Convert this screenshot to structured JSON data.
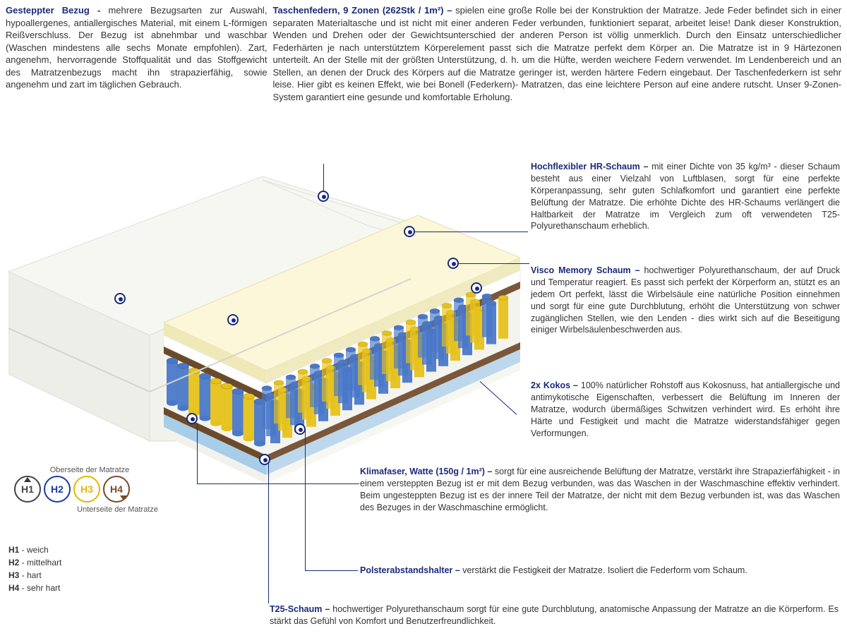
{
  "top": {
    "cover": {
      "title": "Gesteppter Bezug - ",
      "body": "mehrere Bezugsarten zur Auswahl, hypoallergenes, antiallergisches Material, mit einem L-förmigen Reißverschluss. Der Bezug ist abnehmbar und waschbar (Waschen mindestens alle sechs Monate empfohlen). Zart, angenehm, hervorragende Stoffqualität und das Stoffgewicht des Matratzenbezugs macht ihn strapazierfähig, sowie angenehm und zart im täglichen Gebrauch."
    },
    "springs": {
      "title": "Taschenfedern, 9 Zonen (262Stk / 1m²) – ",
      "body": "spielen eine große Rolle bei der Konstruktion der Matratze. Jede Feder befindet sich in einer separaten Materialtasche und ist nicht mit einer anderen Feder verbunden, funktioniert separat, arbeitet leise! Dank dieser Konstruktion, Wenden und Drehen oder der Gewichtsunterschied der anderen Person ist völlig unmerklich. Durch den Einsatz unterschiedlicher Federhärten je nach unterstütztem Körperelement passt sich die Matratze perfekt dem Körper an. Die Matratze ist in 9 Härtezonen unterteilt. An der Stelle mit der größten Unterstützung, d. h. um die Hüfte, werden weichere Federn verwendet. Im Lendenbereich und an Stellen, an denen der Druck des Körpers auf die Matratze geringer ist, werden härtere Federn eingebaut. Der Taschenfederkern ist sehr leise. Hier gibt es keinen Effekt, wie bei Bonell (Federkern)- Matratzen, das eine leichtere Person auf eine andere rutscht. Unser 9-Zonen-System garantiert eine gesunde und komfortable Erholung."
    }
  },
  "sections": {
    "hr": {
      "title": "Hochflexibler HR-Schaum – ",
      "body": "mit einer Dichte von 35 kg/m³ - dieser Schaum besteht aus einer Vielzahl von Luftblasen, sorgt für eine perfekte Körperanpassung, sehr guten Schlafkomfort und garantiert eine perfekte Belüftung der Matratze. Die erhöhte Dichte des HR-Schaums verlängert die Haltbarkeit der Matratze im Vergleich zum oft verwendeten T25-Polyurethanschaum erheblich."
    },
    "visco": {
      "title": "Visco Memory Schaum – ",
      "body": "hochwertiger Polyurethanschaum, der auf Druck und Temperatur reagiert. Es passt sich perfekt der Körperform an, stützt es an jedem Ort perfekt, lässt die Wirbelsäule eine natürliche Position einnehmen und sorgt für eine gute Durchblutung, erhöht die Unterstützung von schwer zugänglichen Stellen, wie den Lenden - dies wirkt sich auf die Beseitigung einiger Wirbelsäulenbeschwerden aus."
    },
    "kokos": {
      "title": "2x Kokos – ",
      "body": "100% natürlicher Rohstoff aus Kokosnuss, hat antiallergische und antimykotische Eigenschaften, verbessert die Belüftung im Inneren der Matratze, wodurch übermäßiges Schwitzen verhindert wird. Es erhöht ihre Härte und Festigkeit und macht die Matratze widerstandsfähiger gegen Verformungen."
    },
    "klima": {
      "title": "Klimafaser, Watte (150g / 1m²) – ",
      "body": "sorgt für eine ausreichende Belüftung der Matratze, verstärkt ihre Strapazierfähigkeit - in einem versteppten Bezug ist er mit dem Bezug verbunden, was das Waschen in der Waschmaschine effektiv verhindert. Beim ungesteppten Bezug ist es der innere Teil der Matratze, der nicht mit dem Bezug verbunden ist, was das Waschen des Bezuges in der Waschmaschine ermöglicht."
    },
    "polster": {
      "title": "Polsterabstandshalter – ",
      "body": "verstärkt die Festigkeit der Matratze. Isoliert die Federform vom Schaum."
    },
    "t25": {
      "title": "T25-Schaum – ",
      "body": "hochwertiger Polyurethanschaum sorgt für eine gute Durchblutung, anatomische Anpassung der Matratze an die Körperform. Es stärkt das Gefühl von Komfort und Benutzerfreundlichkeit."
    }
  },
  "legend": {
    "top": "Oberseite der Matratze",
    "bottom": "Unterseite der Matratze",
    "circles": [
      {
        "label": "H1",
        "color": "#444444"
      },
      {
        "label": "H2",
        "color": "#1a3aa8"
      },
      {
        "label": "H3",
        "color": "#e6b800"
      },
      {
        "label": "H4",
        "color": "#7a4a2a"
      }
    ],
    "list": [
      {
        "k": "H1",
        "v": " - weich"
      },
      {
        "k": "H2",
        "v": " - mittelhart"
      },
      {
        "k": "H3",
        "v": " - hart"
      },
      {
        "k": "H4",
        "v": " - sehr hart"
      }
    ]
  },
  "illustration": {
    "cover_color": "#f5f5f0",
    "cover_shadow": "#e8e8e2",
    "hr_color": "#fbf7d8",
    "visco_color": "#ffffff",
    "kokos_color": "#6b4a2a",
    "t25_color": "#a8cde8",
    "base_color": "#ededed",
    "spring_colors": [
      "#4a78c8",
      "#e6c21a",
      "#4a78c8",
      "#e6c21a",
      "#4a78c8",
      "#e6c21a",
      "#4a78c8"
    ]
  }
}
